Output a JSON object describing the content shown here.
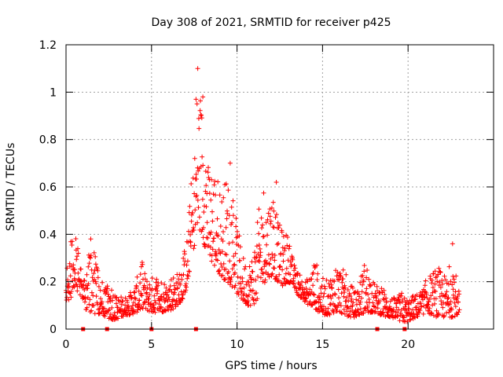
{
  "chart_data": {
    "type": "scatter",
    "title": "Day 308 of 2021, SRMTID for receiver p425",
    "xlabel": "GPS time / hours",
    "ylabel": "SRMTID / TECUs",
    "xlim": [
      0,
      25
    ],
    "ylim": [
      0,
      1.2
    ],
    "xticks": [
      "0",
      "5",
      "10",
      "15",
      "20"
    ],
    "xtick_values": [
      0,
      5,
      10,
      15,
      20
    ],
    "yticks": [
      "0",
      "0.2",
      "0.4",
      "0.6",
      "0.8",
      "1",
      "1.2"
    ],
    "ytick_values": [
      0,
      0.2,
      0.4,
      0.6,
      0.8,
      1.0,
      1.2
    ],
    "grid": true,
    "marker": "+",
    "color": "#ff0000",
    "series_name": "SRMTID",
    "envelope_x": [
      0,
      0.3,
      0.5,
      0.7,
      0.9,
      1.0,
      1.2,
      1.5,
      1.8,
      2.1,
      2.4,
      2.6,
      2.9,
      3.2,
      3.5,
      3.8,
      4.1,
      4.4,
      4.7,
      5.0,
      5.3,
      5.6,
      5.9,
      6.2,
      6.5,
      6.8,
      7.1,
      7.3,
      7.5,
      7.7,
      7.9,
      8.1,
      8.3,
      8.5,
      8.8,
      9.1,
      9.4,
      9.7,
      10.0,
      10.3,
      10.6,
      10.9,
      11.2,
      11.5,
      11.8,
      12.1,
      12.4,
      12.7,
      13.0,
      13.3,
      13.6,
      13.9,
      14.2,
      14.5,
      14.8,
      15.1,
      15.4,
      15.7,
      16.0,
      16.3,
      16.6,
      16.9,
      17.2,
      17.5,
      17.8,
      18.1,
      18.4,
      18.7,
      19.0,
      19.3,
      19.6,
      19.9,
      20.2,
      20.5,
      20.8,
      21.1,
      21.4,
      21.7,
      22.0,
      22.3,
      22.6,
      22.9
    ],
    "envelope_low": [
      0.1,
      0.12,
      0.18,
      0.15,
      0.12,
      0.1,
      0.08,
      0.07,
      0.06,
      0.06,
      0.05,
      0.04,
      0.04,
      0.05,
      0.06,
      0.06,
      0.07,
      0.08,
      0.08,
      0.07,
      0.07,
      0.07,
      0.08,
      0.08,
      0.1,
      0.12,
      0.18,
      0.28,
      0.35,
      0.4,
      0.4,
      0.35,
      0.3,
      0.28,
      0.25,
      0.22,
      0.2,
      0.18,
      0.15,
      0.12,
      0.1,
      0.1,
      0.12,
      0.18,
      0.22,
      0.22,
      0.2,
      0.18,
      0.2,
      0.18,
      0.14,
      0.12,
      0.1,
      0.09,
      0.07,
      0.06,
      0.06,
      0.07,
      0.07,
      0.06,
      0.05,
      0.05,
      0.06,
      0.07,
      0.07,
      0.07,
      0.06,
      0.05,
      0.05,
      0.04,
      0.03,
      0.03,
      0.04,
      0.05,
      0.06,
      0.07,
      0.06,
      0.05,
      0.05,
      0.05,
      0.05,
      0.06
    ],
    "envelope_high": [
      0.24,
      0.4,
      0.44,
      0.36,
      0.26,
      0.22,
      0.24,
      0.42,
      0.28,
      0.22,
      0.18,
      0.22,
      0.14,
      0.14,
      0.14,
      0.16,
      0.2,
      0.3,
      0.22,
      0.22,
      0.24,
      0.22,
      0.2,
      0.24,
      0.24,
      0.3,
      0.4,
      0.62,
      0.72,
      1.1,
      0.98,
      0.98,
      0.7,
      0.72,
      0.68,
      0.58,
      0.66,
      0.6,
      0.45,
      0.32,
      0.28,
      0.32,
      0.46,
      0.65,
      0.55,
      0.62,
      0.45,
      0.42,
      0.4,
      0.28,
      0.24,
      0.2,
      0.22,
      0.3,
      0.26,
      0.2,
      0.22,
      0.28,
      0.28,
      0.24,
      0.2,
      0.16,
      0.22,
      0.3,
      0.24,
      0.18,
      0.2,
      0.16,
      0.14,
      0.13,
      0.16,
      0.13,
      0.14,
      0.15,
      0.16,
      0.22,
      0.24,
      0.27,
      0.24,
      0.22,
      0.36,
      0.17
    ],
    "gap_markers_x": [
      1.0,
      2.4,
      5.0,
      7.6,
      18.2,
      19.8
    ],
    "gap_markers_y": [
      0,
      0,
      0,
      0,
      0,
      0
    ],
    "n_points": 1400,
    "x_end": 23.0
  }
}
